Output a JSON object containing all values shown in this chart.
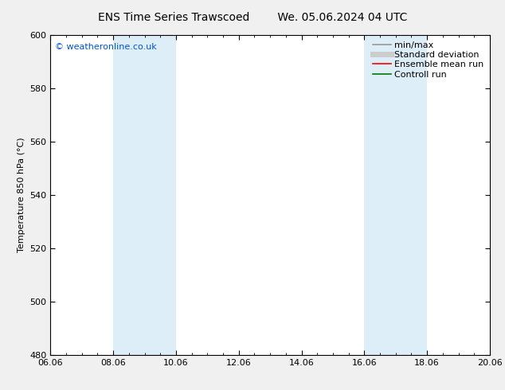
{
  "title_left": "ENS Time Series Trawscoed",
  "title_right": "We. 05.06.2024 04 UTC",
  "ylabel": "Temperature 850 hPa (°C)",
  "watermark": "© weatheronline.co.uk",
  "watermark_color": "#0055cc",
  "ylim": [
    480,
    600
  ],
  "yticks": [
    480,
    500,
    520,
    540,
    560,
    580,
    600
  ],
  "xtick_labels": [
    "06.06",
    "08.06",
    "10.06",
    "12.06",
    "14.06",
    "16.06",
    "18.06",
    "20.06"
  ],
  "xtick_positions": [
    0,
    2,
    4,
    6,
    8,
    10,
    12,
    14
  ],
  "shaded_bands": [
    {
      "xstart": 2,
      "xend": 3
    },
    {
      "xstart": 3,
      "xend": 4
    },
    {
      "xstart": 10,
      "xend": 11
    },
    {
      "xstart": 11,
      "xend": 12
    }
  ],
  "shade_color": "#ddeef8",
  "background_color": "#f0f0f0",
  "plot_bg_color": "#ffffff",
  "legend_items": [
    {
      "label": "min/max",
      "color": "#999999",
      "lw": 1.2,
      "ls": "-"
    },
    {
      "label": "Standard deviation",
      "color": "#cccccc",
      "lw": 5,
      "ls": "-"
    },
    {
      "label": "Ensemble mean run",
      "color": "#ff0000",
      "lw": 1.2,
      "ls": "-"
    },
    {
      "label": "Controll run",
      "color": "#007700",
      "lw": 1.2,
      "ls": "-"
    }
  ],
  "title_fontsize": 10,
  "axis_fontsize": 8,
  "tick_fontsize": 8,
  "watermark_fontsize": 8,
  "legend_fontsize": 8
}
